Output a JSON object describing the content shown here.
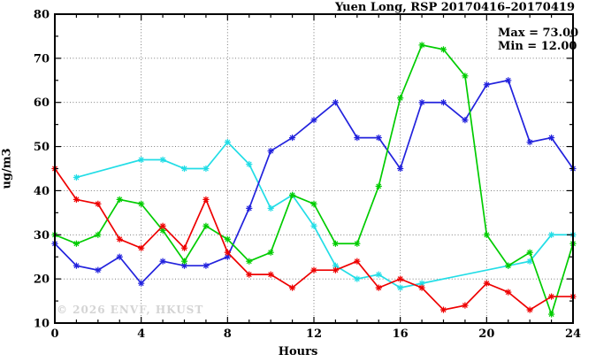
{
  "title": "Yuen Long, RSP 20170416–20170419",
  "legend": {
    "max_label": "Max = 73.00",
    "min_label": "Min = 12.00"
  },
  "watermark": "© 2026 ENVF, HKUST",
  "colors": {
    "blue": "#2222dd",
    "cyan": "#22dde6",
    "green": "#00cc00",
    "red": "#ee0000",
    "grid": "#6b6b6b",
    "axis": "#000000",
    "watermark": "#d4d4d4"
  },
  "chart_data": {
    "type": "line",
    "title": "Yuen Long, RSP 20170416–20170419",
    "xlabel": "Hours",
    "ylabel": "ug/m3",
    "xlim": [
      0,
      24
    ],
    "ylim": [
      10,
      80
    ],
    "x_major_ticks": [
      0,
      4,
      8,
      12,
      16,
      20,
      24
    ],
    "x_minor_step": 1,
    "y_major_ticks": [
      10,
      20,
      30,
      40,
      50,
      60,
      70,
      80
    ],
    "y_minor_step": 5,
    "grid": "dotted-at-major-ticks",
    "marker": "asterisk",
    "legend_position": "top-right-inside",
    "annotations": [
      "Max = 73.00",
      "Min = 12.00"
    ],
    "x": [
      0,
      1,
      2,
      3,
      4,
      5,
      6,
      7,
      8,
      9,
      10,
      11,
      12,
      13,
      14,
      15,
      16,
      17,
      18,
      19,
      20,
      21,
      22,
      23,
      24
    ],
    "series": [
      {
        "name": "cyan-series",
        "color": "#22dde6",
        "values": [
          null,
          43,
          null,
          null,
          47,
          47,
          45,
          45,
          51,
          46,
          36,
          39,
          32,
          23,
          20,
          21,
          18,
          19,
          null,
          null,
          null,
          23,
          24,
          30,
          30
        ]
      },
      {
        "name": "blue-series",
        "color": "#2222dd",
        "values": [
          28,
          23,
          22,
          25,
          19,
          24,
          23,
          23,
          25,
          36,
          49,
          52,
          56,
          60,
          52,
          52,
          45,
          60,
          60,
          56,
          64,
          65,
          51,
          52,
          45
        ]
      },
      {
        "name": "green-series",
        "color": "#00cc00",
        "values": [
          30,
          28,
          30,
          38,
          37,
          31,
          24,
          32,
          29,
          24,
          26,
          39,
          37,
          28,
          28,
          41,
          61,
          73,
          72,
          66,
          30,
          23,
          26,
          12,
          28
        ]
      },
      {
        "name": "red-series",
        "color": "#ee0000",
        "values": [
          45,
          38,
          37,
          29,
          27,
          32,
          27,
          38,
          26,
          21,
          21,
          18,
          22,
          22,
          24,
          18,
          20,
          18,
          13,
          14,
          19,
          17,
          13,
          16,
          16
        ]
      }
    ],
    "stats": {
      "max": 73.0,
      "min": 12.0
    }
  }
}
